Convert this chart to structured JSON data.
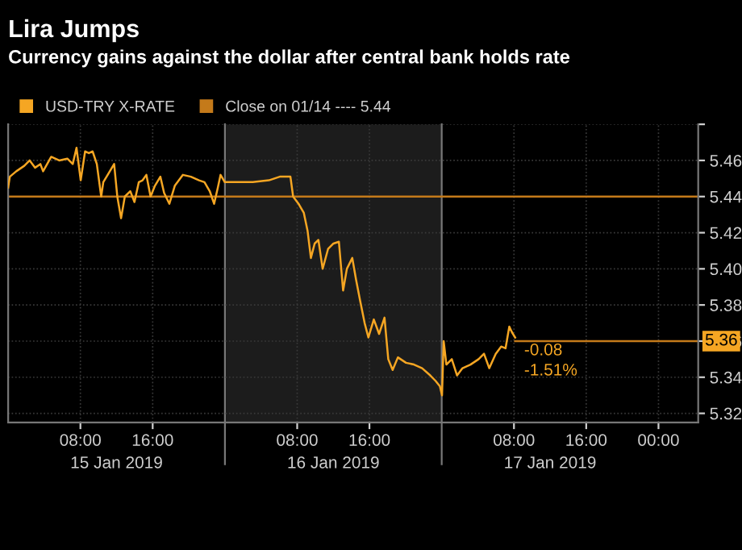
{
  "chart_data": {
    "type": "line",
    "title": "Lira Jumps",
    "subtitle": "Currency gains against the dollar after central bank holds rate",
    "series": [
      {
        "name": "USD-TRY X-RATE",
        "color": "#f5a623",
        "x": [
          "2019-01-15T00:00",
          "2019-01-15T00:11",
          "2019-01-15T00:54",
          "2019-01-15T01:47",
          "2019-01-15T02:23",
          "2019-01-15T02:59",
          "2019-01-15T03:34",
          "2019-01-15T03:52",
          "2019-01-15T04:46",
          "2019-01-15T05:39",
          "2019-01-15T06:33",
          "2019-01-15T07:09",
          "2019-01-15T07:34",
          "2019-01-15T08:02",
          "2019-01-15T08:31",
          "2019-01-15T08:56",
          "2019-01-15T09:21",
          "2019-01-15T09:49",
          "2019-01-15T10:18",
          "2019-01-15T10:32",
          "2019-01-15T11:01",
          "2019-01-15T11:44",
          "2019-01-15T12:05",
          "2019-01-15T12:30",
          "2019-01-15T12:55",
          "2019-01-15T13:31",
          "2019-01-15T13:59",
          "2019-01-15T14:28",
          "2019-01-15T14:53",
          "2019-01-15T15:18",
          "2019-01-15T15:46",
          "2019-01-15T16:15",
          "2019-01-15T16:51",
          "2019-01-15T17:16",
          "2019-01-15T17:51",
          "2019-01-15T18:27",
          "2019-01-15T19:21",
          "2019-01-15T20:14",
          "2019-01-15T21:08",
          "2019-01-15T21:44",
          "2019-01-15T22:19",
          "2019-01-15T22:48",
          "2019-01-15T23:13",
          "2019-01-15T23:31",
          "2019-01-15T23:59",
          "2019-01-16T01:18",
          "2019-01-16T03:05",
          "2019-01-16T04:52",
          "2019-01-16T06:04",
          "2019-01-16T07:15",
          "2019-01-16T07:33",
          "2019-01-16T08:09",
          "2019-01-16T08:44",
          "2019-01-16T09:09",
          "2019-01-16T09:31",
          "2019-01-16T09:56",
          "2019-01-16T10:21",
          "2019-01-16T10:49",
          "2019-01-16T11:25",
          "2019-01-16T12:01",
          "2019-01-16T12:37",
          "2019-01-16T13:05",
          "2019-01-16T13:30",
          "2019-01-16T14:06",
          "2019-01-16T14:31",
          "2019-01-16T14:59",
          "2019-01-16T15:28",
          "2019-01-16T15:53",
          "2019-01-16T16:29",
          "2019-01-16T17:04",
          "2019-01-16T17:40",
          "2019-01-16T18:05",
          "2019-01-16T18:34",
          "2019-01-16T19:09",
          "2019-01-16T20:03",
          "2019-01-16T20:56",
          "2019-01-16T21:50",
          "2019-01-16T22:44",
          "2019-01-16T23:19",
          "2019-01-16T23:48",
          "2019-01-17T00:02",
          "2019-01-17T00:13",
          "2019-01-17T00:31",
          "2019-01-17T01:07",
          "2019-01-17T01:42",
          "2019-01-17T02:18",
          "2019-01-17T03:11",
          "2019-01-17T04:05",
          "2019-01-17T04:41",
          "2019-01-17T05:16",
          "2019-01-17T05:59",
          "2019-01-17T06:35",
          "2019-01-17T07:04",
          "2019-01-17T07:29",
          "2019-01-17T07:46",
          "2019-01-17T08:08"
        ],
        "values": [
          5.445,
          5.451,
          5.454,
          5.457,
          5.46,
          5.456,
          5.458,
          5.454,
          5.462,
          5.46,
          5.461,
          5.458,
          5.467,
          5.449,
          5.465,
          5.464,
          5.465,
          5.458,
          5.44,
          5.448,
          5.452,
          5.458,
          5.44,
          5.428,
          5.44,
          5.443,
          5.437,
          5.448,
          5.449,
          5.452,
          5.44,
          5.446,
          5.451,
          5.442,
          5.436,
          5.446,
          5.452,
          5.451,
          5.449,
          5.448,
          5.443,
          5.436,
          5.445,
          5.452,
          5.448,
          5.448,
          5.448,
          5.449,
          5.451,
          5.451,
          5.44,
          5.436,
          5.431,
          5.421,
          5.406,
          5.414,
          5.416,
          5.4,
          5.411,
          5.414,
          5.415,
          5.388,
          5.4,
          5.406,
          5.394,
          5.382,
          5.37,
          5.362,
          5.372,
          5.364,
          5.373,
          5.35,
          5.344,
          5.351,
          5.348,
          5.347,
          5.345,
          5.341,
          5.338,
          5.335,
          5.33,
          5.36,
          5.347,
          5.35,
          5.341,
          5.345,
          5.347,
          5.35,
          5.353,
          5.345,
          5.353,
          5.357,
          5.356,
          5.368,
          5.365,
          5.362
        ]
      }
    ],
    "ref_lines": [
      {
        "axis": "y",
        "value": 5.44,
        "label": "Close on 01/14 ---- 5.44",
        "color": "#c47a1a"
      },
      {
        "axis": "x",
        "value": "2019-01-16T00:00",
        "color": "#777777"
      },
      {
        "axis": "x",
        "value": "2019-01-17T00:00",
        "color": "#777777"
      }
    ],
    "bands": [
      {
        "axis": "x",
        "from": "2019-01-16T00:00",
        "to": "2019-01-17T00:00",
        "color": "#1c1c1c"
      }
    ],
    "annotations": [
      {
        "text": "5.36",
        "x": "2019-01-17T08:08",
        "y": 5.36
      },
      {
        "text": "-0.08",
        "x": "2019-01-17T08:08",
        "y": 5.362
      },
      {
        "text": "-1.51%",
        "x": "2019-01-17T08:08",
        "y": 5.362
      },
      "15 Jan 2019",
      "16 Jan 2019",
      "17 Jan 2019"
    ],
    "xlim": [
      "2019-01-15T00:00",
      "2019-01-18T04:24"
    ],
    "xticks": [
      {
        "value": "2019-01-15T08:00",
        "label": "08:00"
      },
      {
        "value": "2019-01-15T16:00",
        "label": "16:00"
      },
      {
        "value": "2019-01-16T08:00",
        "label": "08:00"
      },
      {
        "value": "2019-01-16T16:00",
        "label": "16:00"
      },
      {
        "value": "2019-01-17T08:00",
        "label": "08:00"
      },
      {
        "value": "2019-01-17T16:00",
        "label": "16:00"
      },
      {
        "value": "2019-01-18T00:00",
        "label": "00:00"
      }
    ],
    "ylim": [
      5.315,
      5.48
    ],
    "yticks": [
      5.32,
      5.34,
      5.36,
      5.38,
      {
        "value": 5.4,
        "label": "5.40"
      },
      5.42,
      5.44,
      5.46,
      {
        "value": 5.48,
        "label": null
      }
    ],
    "grid": true,
    "legend": "top left",
    "marker": "none",
    "line_style": "solid"
  }
}
